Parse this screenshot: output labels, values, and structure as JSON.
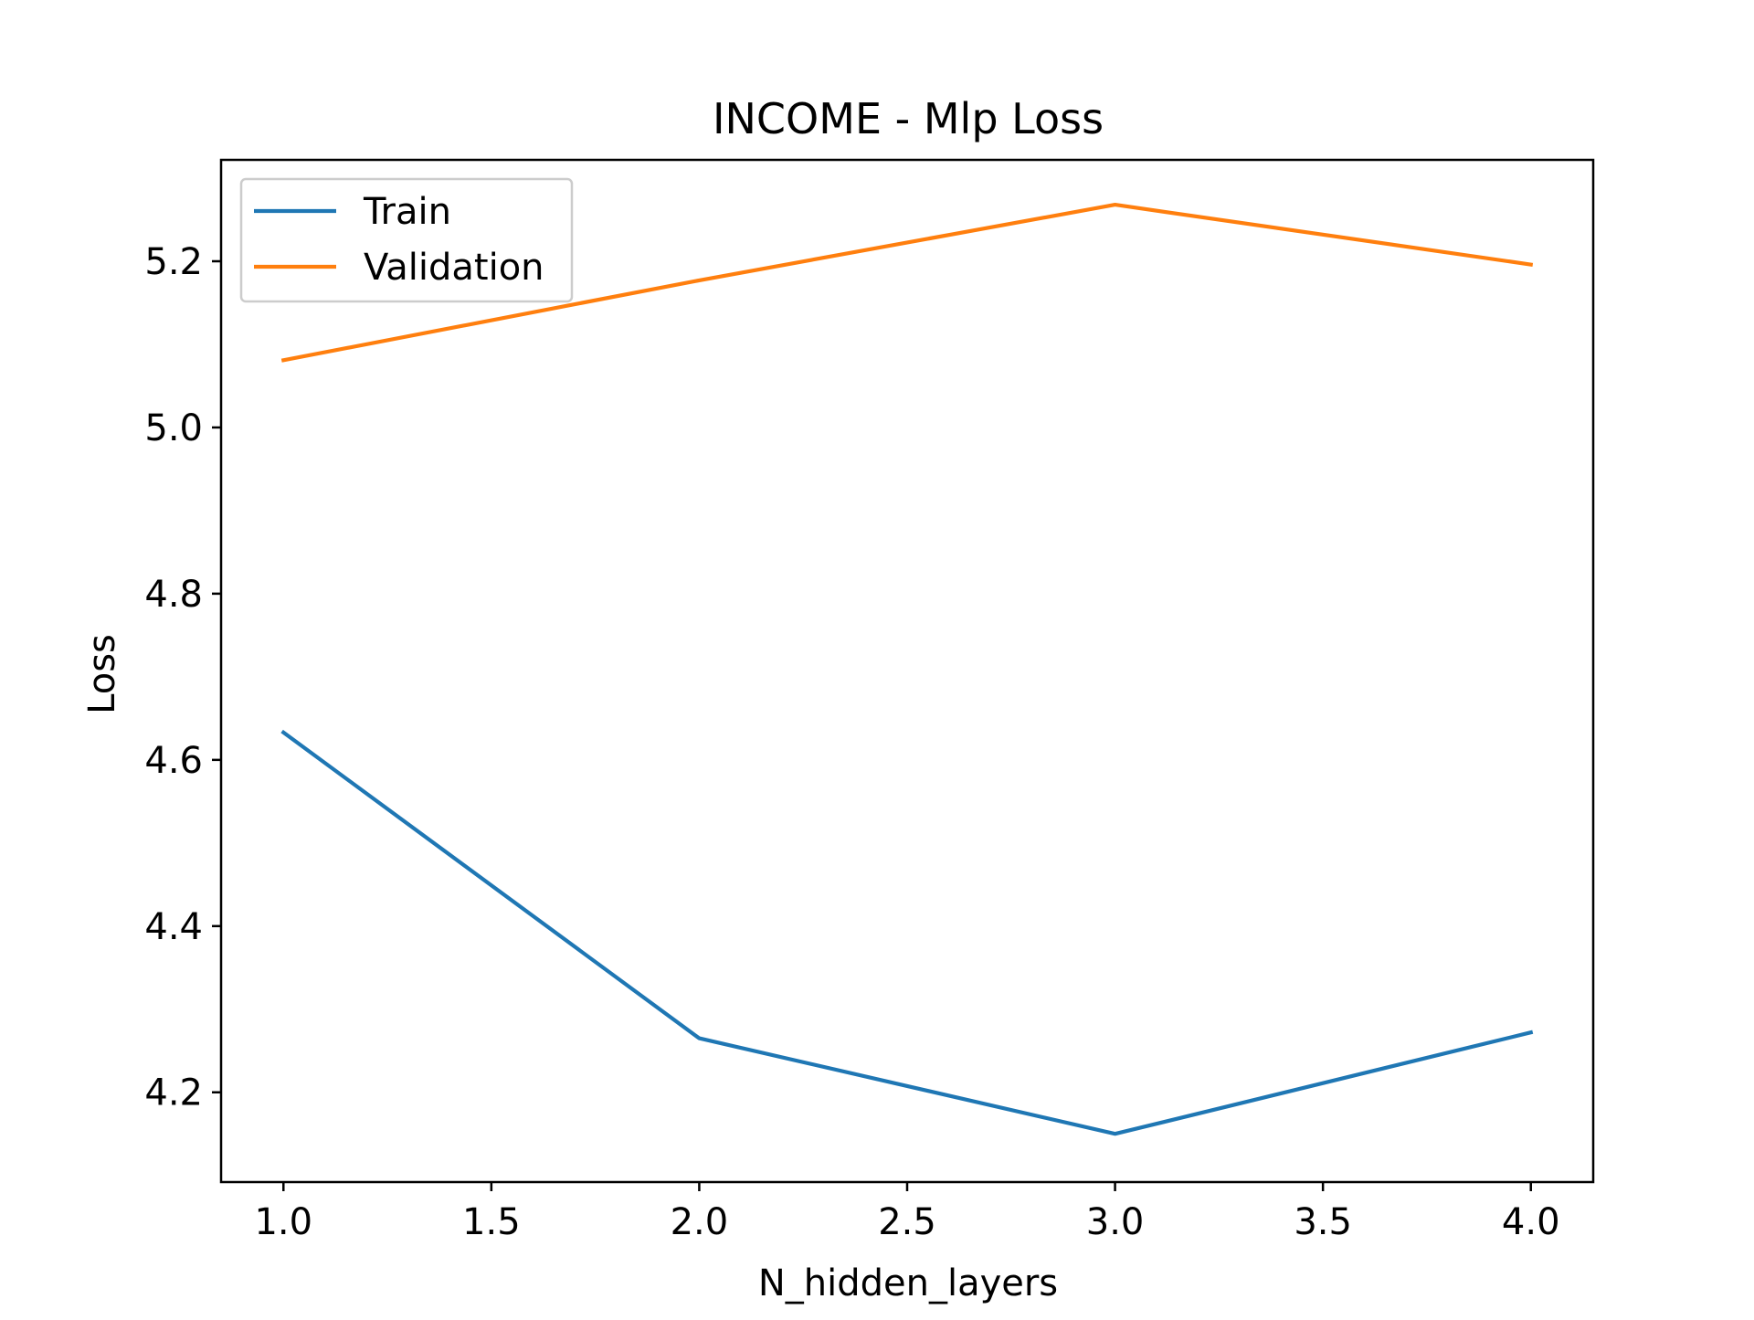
{
  "chart_data": {
    "type": "line",
    "title": "INCOME - Mlp Loss",
    "xlabel": "N_hidden_layers",
    "ylabel": "Loss",
    "x": [
      1.0,
      2.0,
      3.0,
      4.0
    ],
    "xlim": [
      0.85,
      4.15
    ],
    "ylim": [
      4.092,
      5.322
    ],
    "xticks": [
      1.0,
      1.5,
      2.0,
      2.5,
      3.0,
      3.5,
      4.0
    ],
    "xtick_labels": [
      "1.0",
      "1.5",
      "2.0",
      "2.5",
      "3.0",
      "3.5",
      "4.0"
    ],
    "yticks": [
      4.2,
      4.4,
      4.6,
      4.8,
      5.0,
      5.2
    ],
    "ytick_labels": [
      "4.2",
      "4.4",
      "4.6",
      "4.8",
      "5.0",
      "5.2"
    ],
    "grid": false,
    "legend_position": "top-left",
    "series": [
      {
        "name": "Train",
        "color": "#1f77b4",
        "values": [
          4.633,
          4.265,
          4.15,
          4.272
        ]
      },
      {
        "name": "Validation",
        "color": "#ff7f0e",
        "values": [
          5.081,
          5.177,
          5.268,
          5.196
        ]
      }
    ]
  }
}
